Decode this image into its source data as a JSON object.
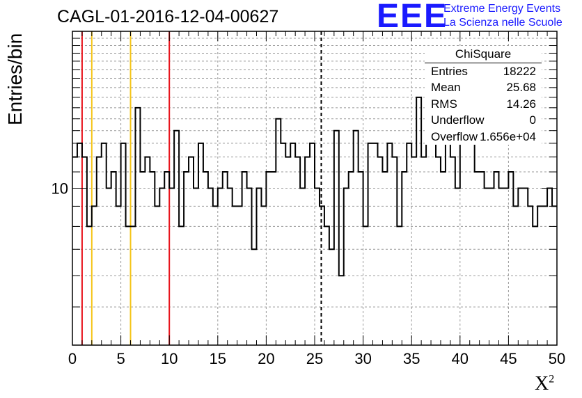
{
  "title": "CAGL-01-2016-12-04-00627",
  "logo": {
    "mark": "EEE",
    "line1": "Extreme Energy Events",
    "line2": "La Scienza nelle Scuole"
  },
  "stats": {
    "header": "ChiSquare",
    "rows": [
      {
        "label": "Entries",
        "value": "18222"
      },
      {
        "label": "Mean",
        "value": "25.68"
      },
      {
        "label": "RMS",
        "value": "14.26"
      },
      {
        "label": "Underflow",
        "value": "0"
      },
      {
        "label": "Overflow",
        "value": "1.656e+04"
      }
    ]
  },
  "colors": {
    "red_line": "#e8141c",
    "yellow_line": "#f5c518",
    "histogram": "#000000",
    "grid": "#999999"
  },
  "chart_data": {
    "type": "histogram",
    "title": "CAGL-01-2016-12-04-00627",
    "xlabel": "X",
    "xlabel_superscript": "2",
    "ylabel": "Entries/bin",
    "xlim": [
      0,
      50
    ],
    "ylim": [
      4,
      25
    ],
    "yscale": "log",
    "grid": true,
    "x_ticks": [
      0,
      5,
      10,
      15,
      20,
      25,
      30,
      35,
      40,
      45,
      50
    ],
    "y_tick_labels": [
      {
        "value": 10,
        "label": "10"
      }
    ],
    "bin_width": 0.5,
    "values": [
      12,
      13,
      12,
      8,
      9,
      12,
      13,
      10,
      11,
      9,
      13,
      8,
      8,
      16,
      11,
      12,
      11,
      9,
      10,
      11,
      10,
      14,
      8,
      11,
      12,
      10,
      13,
      11,
      10,
      9,
      10,
      11,
      10,
      9,
      9,
      11,
      10,
      7,
      10,
      9,
      11,
      11,
      15,
      13,
      12,
      13,
      12,
      10,
      12,
      13,
      10,
      9,
      8,
      7,
      14,
      6,
      10,
      11,
      14,
      11,
      8,
      13,
      13,
      12,
      11,
      13,
      12,
      8,
      11,
      13,
      12,
      17,
      12,
      13,
      14,
      12,
      11,
      15,
      12,
      10,
      14,
      13,
      13,
      11,
      11,
      10,
      10,
      11,
      10,
      10,
      11,
      9,
      10,
      10,
      9,
      8,
      9,
      9,
      10,
      9
    ],
    "vertical_lines": [
      {
        "x": 1,
        "color": "red"
      },
      {
        "x": 2,
        "color": "yellow"
      },
      {
        "x": 6,
        "color": "yellow"
      },
      {
        "x": 10,
        "color": "red"
      },
      {
        "x": 25.68,
        "color": "black",
        "style": "dashed"
      }
    ]
  }
}
